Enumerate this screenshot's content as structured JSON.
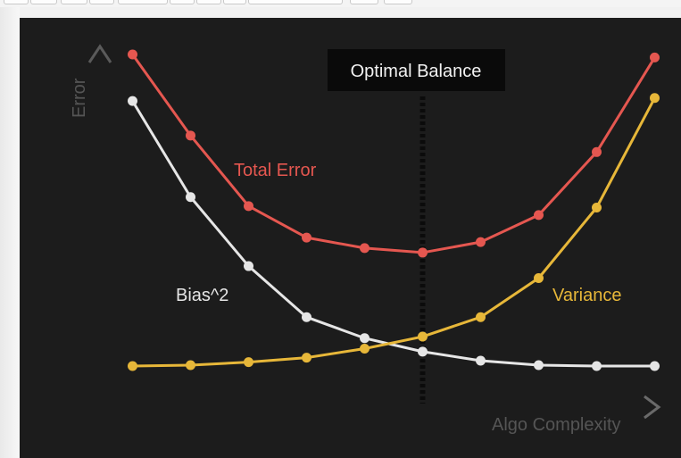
{
  "toolbar": {
    "buttons": [
      "",
      "",
      "",
      "",
      "",
      "",
      "",
      "",
      "",
      "",
      ""
    ]
  },
  "chart_data": {
    "type": "line",
    "title": "",
    "xlabel": "Algo Complexity",
    "ylabel": "Error",
    "x": [
      1,
      2,
      3,
      4,
      5,
      6,
      7,
      8,
      9,
      10
    ],
    "xlim": [
      0.3,
      10.3
    ],
    "ylim": [
      0,
      10.5
    ],
    "optimal_label": "Optimal Balance",
    "optimal_x": 6,
    "series": [
      {
        "name": "Total Error",
        "color": "#e55750",
        "values": [
          10.35,
          7.65,
          5.3,
          4.25,
          3.9,
          3.75,
          4.1,
          5.0,
          7.1,
          10.25
        ]
      },
      {
        "name": "Bias^2",
        "color": "#e6e6e6",
        "values": [
          8.8,
          5.6,
          3.3,
          1.6,
          0.9,
          0.45,
          0.15,
          0.0,
          -0.03,
          -0.03
        ]
      },
      {
        "name": "Variance",
        "color": "#e7b739",
        "values": [
          -0.03,
          0.0,
          0.1,
          0.25,
          0.55,
          0.95,
          1.6,
          2.9,
          5.25,
          8.9
        ]
      }
    ]
  }
}
